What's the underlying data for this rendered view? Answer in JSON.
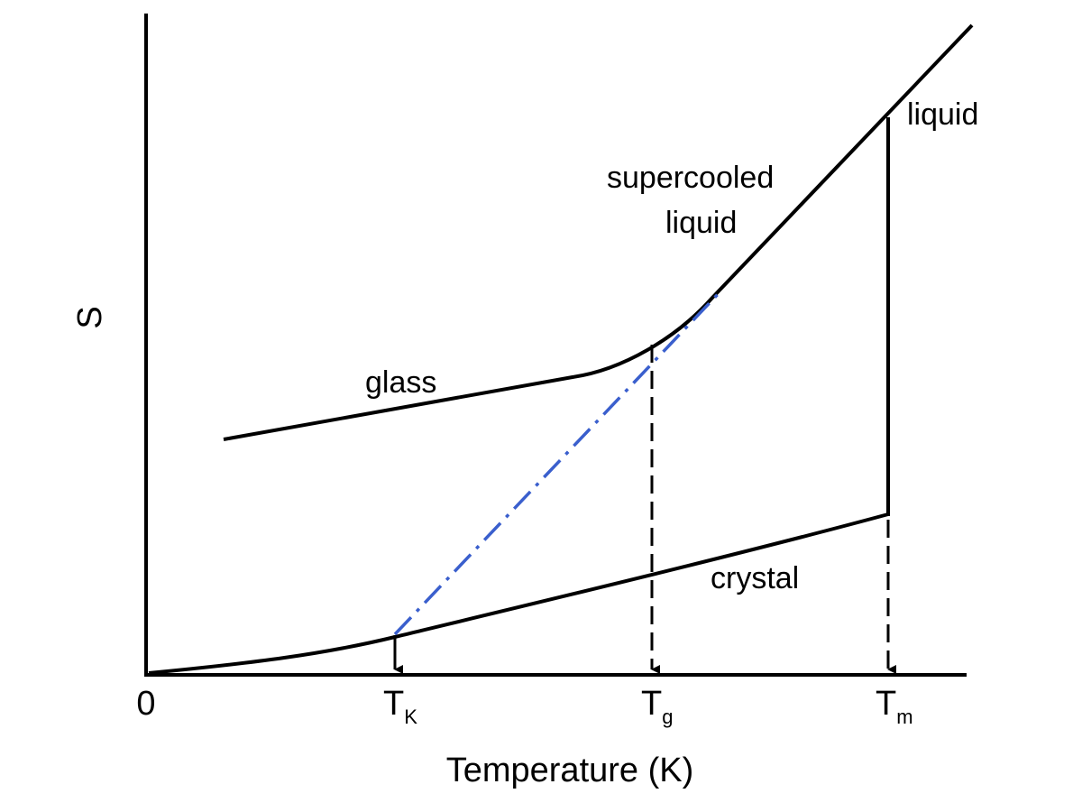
{
  "diagram": {
    "y_axis_label": "S",
    "x_axis_label": "Temperature (K)",
    "origin_label": "0",
    "ticks": [
      {
        "main": "T",
        "sub": "K"
      },
      {
        "main": "T",
        "sub": "g"
      },
      {
        "main": "T",
        "sub": "m"
      }
    ],
    "curve_labels": {
      "liquid": "liquid",
      "supercooled_line1": "supercooled",
      "supercooled_line2": "liquid",
      "glass": "glass",
      "crystal": "crystal"
    },
    "colors": {
      "line": "#000000",
      "extrapolation": "#3a5fcd"
    }
  }
}
